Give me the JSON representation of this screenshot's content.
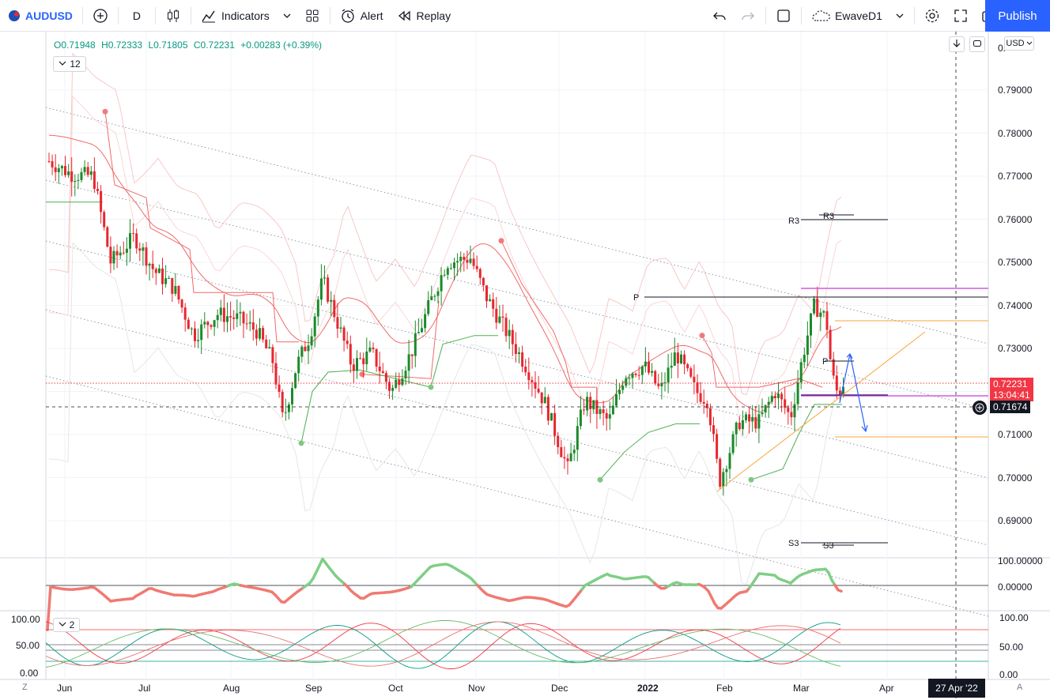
{
  "toolbar": {
    "symbol": "AUDUSD",
    "interval": "D",
    "indicators_label": "Indicators",
    "alert_label": "Alert",
    "replay_label": "Replay",
    "layout_name": "EwaveD1",
    "publish_label": "Publish"
  },
  "legend": {
    "open": "O0.71948",
    "high": "H0.72333",
    "low": "L0.71805",
    "close": "C0.72231",
    "change": "+0.00283 (+0.39%)",
    "indicator_count": "12",
    "sub_indicator_count": "2"
  },
  "price_axis": {
    "currency": "USD",
    "ticks": [
      "0.79000",
      "0.78000",
      "0.77000",
      "0.76000",
      "0.75000",
      "0.74000",
      "0.73000",
      "0.72000",
      "0.71000",
      "0.70000",
      "0.69000"
    ],
    "top_cut": "0.",
    "last_price": "0.72231",
    "countdown": "13:04:41",
    "crosshair_price": "0.71674"
  },
  "osc_axis": {
    "ticks": [
      "100.00000",
      "0.00000"
    ]
  },
  "stoch_axis": {
    "ticks_right": [
      "100.00",
      "50.00",
      "0.00"
    ],
    "ticks_left": [
      "100.00",
      "50.00",
      "0.00"
    ]
  },
  "time_axis": {
    "labels": [
      "Jun",
      "Jul",
      "Aug",
      "Sep",
      "Oct",
      "Nov",
      "Dec",
      "2022",
      "Feb",
      "Mar",
      "Apr"
    ],
    "crosshair_date": "27 Apr '22",
    "z_label": "Z",
    "a_label": "A"
  },
  "pivots": {
    "r3": "R3",
    "p": "P",
    "s3": "S3"
  },
  "colors": {
    "up": "#089981",
    "down": "#f23645",
    "accent": "#2962ff",
    "upCandle": "#1b8a2a",
    "downCandle": "#e8262f"
  }
}
